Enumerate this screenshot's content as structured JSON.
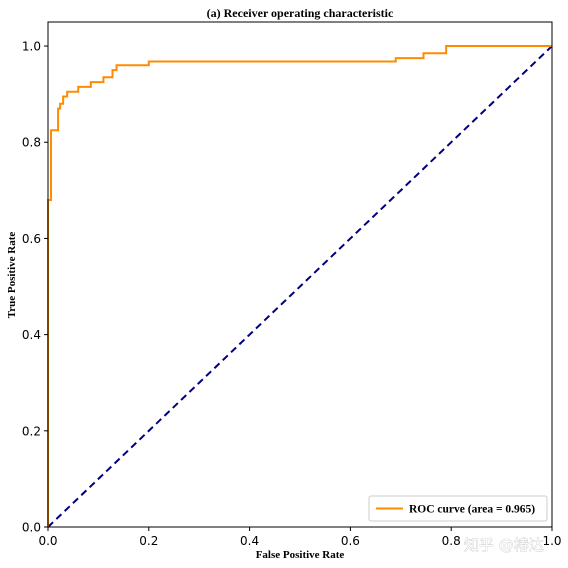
{
  "chart_data": {
    "type": "line",
    "title": "(a) Receiver operating characteristic",
    "xlabel": "False Positive Rate",
    "ylabel": "True Positive Rate",
    "xlim": [
      0.0,
      1.0
    ],
    "ylim": [
      0.0,
      1.05
    ],
    "xticks": [
      "0.0",
      "0.2",
      "0.4",
      "0.6",
      "0.8",
      "1.0"
    ],
    "xtick_values": [
      0,
      0.2,
      0.4,
      0.6,
      0.8,
      1.0
    ],
    "yticks": [
      "0.0",
      "0.2",
      "0.4",
      "0.6",
      "0.8",
      "1.0"
    ],
    "ytick_values": [
      0,
      0.2,
      0.4,
      0.6,
      0.8,
      1.0
    ],
    "grid": false,
    "legend_position": "lower-right",
    "series": [
      {
        "name": "ROC curve (area = 0.965)",
        "color": "#FF8C00",
        "style": "solid",
        "x": [
          0.0,
          0.0,
          0.006,
          0.006,
          0.02,
          0.02,
          0.024,
          0.024,
          0.03,
          0.03,
          0.038,
          0.038,
          0.06,
          0.06,
          0.085,
          0.085,
          0.11,
          0.11,
          0.128,
          0.128,
          0.136,
          0.136,
          0.2,
          0.2,
          0.69,
          0.69,
          0.745,
          0.745,
          0.79,
          0.79,
          1.0
        ],
        "y": [
          0.0,
          0.68,
          0.68,
          0.825,
          0.825,
          0.87,
          0.87,
          0.88,
          0.88,
          0.895,
          0.895,
          0.905,
          0.905,
          0.915,
          0.915,
          0.925,
          0.925,
          0.935,
          0.935,
          0.95,
          0.95,
          0.96,
          0.96,
          0.968,
          0.968,
          0.975,
          0.975,
          0.985,
          0.985,
          1.0,
          1.0
        ]
      },
      {
        "name": "",
        "color": "#000080",
        "style": "dashed",
        "x": [
          0.0,
          1.0
        ],
        "y": [
          0.0,
          1.0
        ]
      }
    ]
  },
  "watermark": "知乎 @椿达"
}
